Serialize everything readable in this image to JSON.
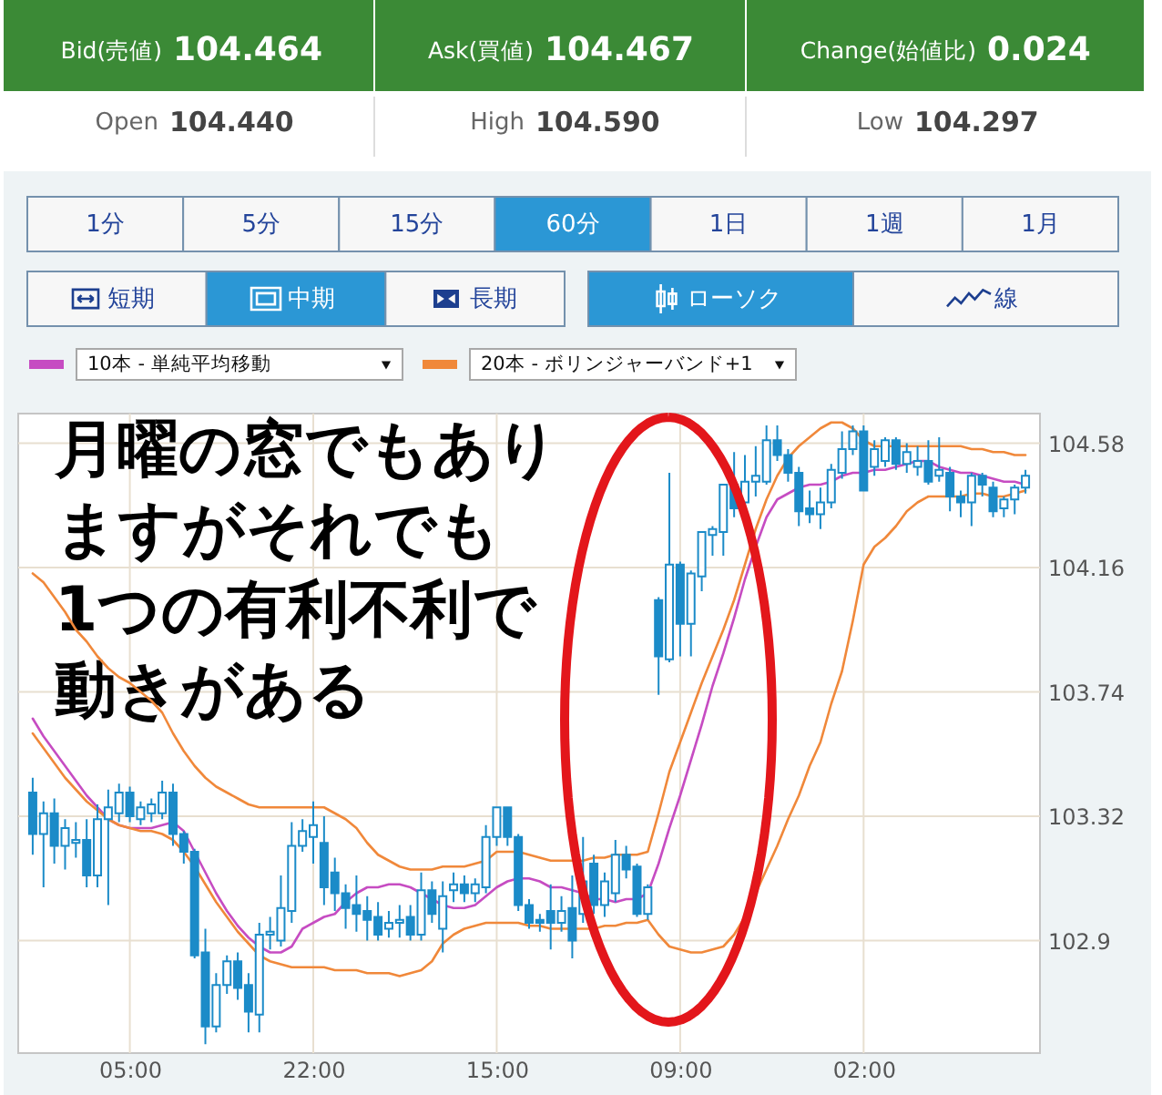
{
  "chart_data": [
    {
      "type": "other",
      "annotations": [
        "Bid(売値)",
        "104.464",
        "Ask(買値)",
        "104.467",
        "Change(始値比)",
        "0.024",
        "Open",
        "104.440",
        "High",
        "104.590",
        "Low",
        "104.297",
        "1分",
        "5分",
        "15分",
        "60分",
        "1日",
        "1週",
        "1月",
        "短期",
        "中期",
        "長期",
        "ローソク",
        "線"
      ]
    },
    {
      "type": "candlestick",
      "categories": [
        null,
        null,
        null,
        null,
        null,
        null,
        null,
        null,
        null,
        "05:00",
        null,
        null,
        null,
        null,
        null,
        null,
        null,
        null,
        null,
        null,
        null,
        null,
        null,
        null,
        null,
        null,
        "22:00",
        null,
        null,
        null,
        null,
        null,
        null,
        null,
        null,
        null,
        null,
        null,
        null,
        null,
        null,
        null,
        null,
        "15:00",
        null,
        null,
        null,
        null,
        null,
        null,
        null,
        null,
        null,
        null,
        null,
        null,
        null,
        null,
        null,
        null,
        "09:00",
        null,
        null,
        null,
        null,
        null,
        null,
        null,
        null,
        null,
        null,
        null,
        null,
        null,
        null,
        null,
        null,
        "02:00",
        null,
        null,
        null,
        null,
        null,
        null,
        null,
        null,
        null,
        null,
        null,
        null,
        null,
        null,
        null
      ],
      "ohlc": [
        [
          103.4,
          103.45,
          103.19,
          103.26
        ],
        [
          103.26,
          103.37,
          103.08,
          103.33
        ],
        [
          103.33,
          103.38,
          103.16,
          103.22
        ],
        [
          103.22,
          103.31,
          103.14,
          103.28
        ],
        [
          103.23,
          103.3,
          103.18,
          103.24
        ],
        [
          103.24,
          103.31,
          103.08,
          103.12
        ],
        [
          103.12,
          103.36,
          103.08,
          103.31
        ],
        [
          103.31,
          103.41,
          103.02,
          103.35
        ],
        [
          103.33,
          103.43,
          103.3,
          103.4
        ],
        [
          103.4,
          103.42,
          103.3,
          103.32
        ],
        [
          103.31,
          103.37,
          103.29,
          103.35
        ],
        [
          103.33,
          103.38,
          103.3,
          103.36
        ],
        [
          103.33,
          103.44,
          103.31,
          103.4
        ],
        [
          103.4,
          103.43,
          103.22,
          103.26
        ],
        [
          103.26,
          103.27,
          103.16,
          103.2
        ],
        [
          103.2,
          103.21,
          102.84,
          102.85
        ],
        [
          102.86,
          102.94,
          102.55,
          102.61
        ],
        [
          102.61,
          102.79,
          102.59,
          102.75
        ],
        [
          102.75,
          102.85,
          102.72,
          102.83
        ],
        [
          102.83,
          102.86,
          102.7,
          102.74
        ],
        [
          102.75,
          102.79,
          102.59,
          102.66
        ],
        [
          102.65,
          102.96,
          102.59,
          102.92
        ],
        [
          102.92,
          102.98,
          102.87,
          102.93
        ],
        [
          102.9,
          103.12,
          102.88,
          103.01
        ],
        [
          103.0,
          103.3,
          102.96,
          103.22
        ],
        [
          103.22,
          103.31,
          103.2,
          103.27
        ],
        [
          103.25,
          103.37,
          103.16,
          103.29
        ],
        [
          103.23,
          103.32,
          103.02,
          103.08
        ],
        [
          103.13,
          103.18,
          103.0,
          103.06
        ],
        [
          103.06,
          103.09,
          102.94,
          103.01
        ],
        [
          103.02,
          103.12,
          102.93,
          102.99
        ],
        [
          103.0,
          103.05,
          102.9,
          102.97
        ],
        [
          102.98,
          103.03,
          102.9,
          102.92
        ],
        [
          102.94,
          103.0,
          102.91,
          102.96
        ],
        [
          102.96,
          103.02,
          102.91,
          102.97
        ],
        [
          102.98,
          103.02,
          102.9,
          102.92
        ],
        [
          102.92,
          103.13,
          102.9,
          103.07
        ],
        [
          103.07,
          103.1,
          102.96,
          102.99
        ],
        [
          102.94,
          103.1,
          102.86,
          103.05
        ],
        [
          103.07,
          103.13,
          103.03,
          103.09
        ],
        [
          103.09,
          103.12,
          103.03,
          103.06
        ],
        [
          103.06,
          103.11,
          103.03,
          103.09
        ],
        [
          103.08,
          103.29,
          103.06,
          103.25
        ],
        [
          103.25,
          103.35,
          103.22,
          103.35
        ],
        [
          103.35,
          103.35,
          103.22,
          103.25
        ],
        [
          103.25,
          103.26,
          103.0,
          103.02
        ],
        [
          103.02,
          103.04,
          102.94,
          102.96
        ],
        [
          102.97,
          102.99,
          102.93,
          102.96
        ],
        [
          103.0,
          103.09,
          102.87,
          102.96
        ],
        [
          102.96,
          103.05,
          102.93,
          103.0
        ],
        [
          103.01,
          103.12,
          102.84,
          102.9
        ],
        [
          102.99,
          103.25,
          102.96,
          103.1
        ],
        [
          103.16,
          103.19,
          102.99,
          103.02
        ],
        [
          103.02,
          103.13,
          102.98,
          103.1
        ],
        [
          103.06,
          103.24,
          103.03,
          103.19
        ],
        [
          103.19,
          103.22,
          103.11,
          103.14
        ],
        [
          103.15,
          103.16,
          102.98,
          102.99
        ],
        [
          102.99,
          103.09,
          102.97,
          103.08
        ],
        [
          104.05,
          104.06,
          103.73,
          103.86
        ],
        [
          103.85,
          104.48,
          103.84,
          104.17
        ],
        [
          104.17,
          104.18,
          103.86,
          103.97
        ],
        [
          103.97,
          104.15,
          103.86,
          104.14
        ],
        [
          104.13,
          104.28,
          104.08,
          104.28
        ],
        [
          104.27,
          104.3,
          104.2,
          104.29
        ],
        [
          104.28,
          104.44,
          104.2,
          104.44
        ],
        [
          104.44,
          104.55,
          104.33,
          104.36
        ],
        [
          104.38,
          104.54,
          104.36,
          104.45
        ],
        [
          104.45,
          104.57,
          104.4,
          104.47
        ],
        [
          104.45,
          104.64,
          104.44,
          104.59
        ],
        [
          104.59,
          104.64,
          104.52,
          104.54
        ],
        [
          104.54,
          104.56,
          104.45,
          104.48
        ],
        [
          104.48,
          104.5,
          104.3,
          104.35
        ],
        [
          104.36,
          104.42,
          104.31,
          104.34
        ],
        [
          104.34,
          104.43,
          104.29,
          104.38
        ],
        [
          104.38,
          104.51,
          104.36,
          104.49
        ],
        [
          104.48,
          104.62,
          104.46,
          104.56
        ],
        [
          104.56,
          104.64,
          104.54,
          104.62
        ],
        [
          104.62,
          104.64,
          104.42,
          104.42
        ],
        [
          104.5,
          104.59,
          104.47,
          104.56
        ],
        [
          104.52,
          104.6,
          104.5,
          104.59
        ],
        [
          104.59,
          104.6,
          104.49,
          104.51
        ],
        [
          104.51,
          104.58,
          104.48,
          104.55
        ],
        [
          104.5,
          104.57,
          104.47,
          104.52
        ],
        [
          104.52,
          104.59,
          104.44,
          104.45
        ],
        [
          104.47,
          104.6,
          104.45,
          104.49
        ],
        [
          104.48,
          104.5,
          104.35,
          104.4
        ],
        [
          104.4,
          104.42,
          104.33,
          104.38
        ],
        [
          104.38,
          104.48,
          104.3,
          104.47
        ],
        [
          104.47,
          104.48,
          104.4,
          104.44
        ],
        [
          104.43,
          104.45,
          104.33,
          104.35
        ],
        [
          104.36,
          104.4,
          104.33,
          104.39
        ],
        [
          104.39,
          104.44,
          104.34,
          104.43
        ],
        [
          104.43,
          104.49,
          104.41,
          104.47
        ]
      ],
      "colors": [
        "#1b8bc8",
        "#1b8bc8",
        "#1b8bc8",
        "#1b8bc8",
        "#1b8bc8",
        "#1b8bc8",
        "#1b8bc8",
        "#1b8bc8",
        "#1b8bc8",
        "#1b8bc8",
        "#1b8bc8",
        "#1b8bc8",
        "#1b8bc8",
        "#1b8bc8",
        "#1b8bc8",
        "#1b8bc8",
        "#1b8bc8",
        "#1b8bc8",
        "#1b8bc8",
        "#1b8bc8",
        "#1b8bc8",
        "#1b8bc8",
        "#1b8bc8",
        "#1b8bc8",
        "#1b8bc8",
        "#1b8bc8",
        "#1b8bc8",
        "#1b8bc8",
        "#1b8bc8",
        "#1b8bc8",
        "#1b8bc8",
        "#1b8bc8",
        "#1b8bc8",
        "#1b8bc8",
        "#1b8bc8",
        "#1b8bc8",
        "#1b8bc8",
        "#1b8bc8",
        "#1b8bc8",
        "#1b8bc8",
        "#1b8bc8",
        "#1b8bc8",
        "#1b8bc8",
        "#1b8bc8",
        "#1b8bc8",
        "#1b8bc8",
        "#1b8bc8",
        "#1b8bc8",
        "#1b8bc8",
        "#1b8bc8",
        "#1b8bc8",
        "#1b8bc8",
        "#1b8bc8",
        "#1b8bc8",
        "#1b8bc8",
        "#1b8bc8",
        "#1b8bc8",
        "#1b8bc8",
        "#1b8bc8",
        "#1b8bc8",
        "#1b8bc8",
        "#1b8bc8",
        "#1b8bc8",
        "#1b8bc8",
        "#1b8bc8",
        "#1b8bc8",
        "#1b8bc8",
        "#1b8bc8",
        "#1b8bc8",
        "#1b8bc8",
        "#1b8bc8",
        "#1b8bc8",
        "#1b8bc8",
        "#1b8bc8",
        "#1b8bc8",
        "#1b8bc8",
        "#1b8bc8",
        "#1b8bc8",
        "#1b8bc8",
        "#1b8bc8",
        "#1b8bc8",
        "#1b8bc8",
        "#1b8bc8",
        "#1b8bc8",
        "#1b8bc8",
        "#1b8bc8",
        "#1b8bc8",
        "#1b8bc8",
        "#1b8bc8",
        "#1b8bc8",
        "#1b8bc8",
        "#1b8bc8",
        "#1b8bc8"
      ],
      "series": [
        {
          "type": "line",
          "name": "10本 - 単純平均移動",
          "color": "#c64cc2",
          "values": [
            103.65,
            103.59,
            103.54,
            103.49,
            103.44,
            103.39,
            103.35,
            103.31,
            103.29,
            103.28,
            103.28,
            103.28,
            103.29,
            103.3,
            103.27,
            103.2,
            103.13,
            103.06,
            103.0,
            102.95,
            102.91,
            102.88,
            102.86,
            102.86,
            102.88,
            102.94,
            102.96,
            102.98,
            102.99,
            103.03,
            103.06,
            103.08,
            103.08,
            103.09,
            103.09,
            103.08,
            103.06,
            103.04,
            103.02,
            103.01,
            103.01,
            103.02,
            103.05,
            103.08,
            103.1,
            103.11,
            103.11,
            103.1,
            103.08,
            103.08,
            103.07,
            103.06,
            103.04,
            103.04,
            103.03,
            103.04,
            103.04,
            103.06,
            103.16,
            103.28,
            103.39,
            103.51,
            103.63,
            103.76,
            103.87,
            103.99,
            104.12,
            104.23,
            104.33,
            104.39,
            104.41,
            104.43,
            104.44,
            104.44,
            104.45,
            104.47,
            104.48,
            104.48,
            104.49,
            104.49,
            104.5,
            104.51,
            104.52,
            104.52,
            104.5,
            104.49,
            104.48,
            104.48,
            104.47,
            104.46,
            104.45,
            104.45,
            104.44
          ]
        },
        {
          "type": "line",
          "name": "20本 - ボリンジャーバンド+1",
          "color": "#f0883a",
          "values": [
            104.14,
            104.11,
            104.06,
            104.01,
            103.95,
            103.91,
            103.86,
            103.82,
            103.79,
            103.77,
            103.74,
            103.71,
            103.67,
            103.6,
            103.54,
            103.49,
            103.45,
            103.42,
            103.4,
            103.38,
            103.36,
            103.35,
            103.35,
            103.35,
            103.35,
            103.35,
            103.35,
            103.35,
            103.33,
            103.31,
            103.28,
            103.23,
            103.19,
            103.17,
            103.15,
            103.14,
            103.14,
            103.14,
            103.15,
            103.15,
            103.15,
            103.16,
            103.17,
            103.2,
            103.2,
            103.2,
            103.19,
            103.18,
            103.17,
            103.17,
            103.17,
            103.17,
            103.18,
            103.18,
            103.19,
            103.19,
            103.19,
            103.2,
            103.33,
            103.47,
            103.57,
            103.67,
            103.77,
            103.86,
            103.95,
            104.05,
            104.17,
            104.29,
            104.39,
            104.47,
            104.53,
            104.57,
            104.6,
            104.63,
            104.65,
            104.65,
            104.63,
            104.59,
            104.57,
            104.57,
            104.57,
            104.57,
            104.57,
            104.57,
            104.57,
            104.57,
            104.57,
            104.56,
            104.56,
            104.55,
            104.55,
            104.54,
            104.54
          ]
        },
        {
          "type": "line",
          "color": "#f0883a",
          "values": [
            103.6,
            103.55,
            103.5,
            103.45,
            103.41,
            103.37,
            103.34,
            103.31,
            103.29,
            103.28,
            103.27,
            103.27,
            103.26,
            103.24,
            103.2,
            103.15,
            103.09,
            103.03,
            102.98,
            102.93,
            102.89,
            102.85,
            102.83,
            102.82,
            102.81,
            102.81,
            102.81,
            102.81,
            102.8,
            102.8,
            102.8,
            102.79,
            102.79,
            102.79,
            102.78,
            102.79,
            102.8,
            102.83,
            102.89,
            102.92,
            102.94,
            102.95,
            102.96,
            102.96,
            102.96,
            102.96,
            102.95,
            102.95,
            102.94,
            102.94,
            102.94,
            102.94,
            102.94,
            102.95,
            102.95,
            102.96,
            102.96,
            102.97,
            102.92,
            102.88,
            102.87,
            102.86,
            102.86,
            102.87,
            102.88,
            102.92,
            102.98,
            103.06,
            103.14,
            103.22,
            103.31,
            103.39,
            103.49,
            103.57,
            103.7,
            103.81,
            103.98,
            104.17,
            104.23,
            104.26,
            104.3,
            104.35,
            104.38,
            104.4,
            104.4,
            104.4,
            104.4,
            104.41,
            104.41,
            104.4,
            104.4,
            104.41,
            104.42
          ]
        }
      ],
      "ylim": [
        102.52,
        104.68
      ],
      "yticks": [
        102.9,
        103.32,
        103.74,
        104.16,
        104.58
      ],
      "grid": true,
      "legend": "top left",
      "annotations": [
        "月曜の窓でもありますがそれでも1つの有利不利で動きがある"
      ]
    }
  ]
}
